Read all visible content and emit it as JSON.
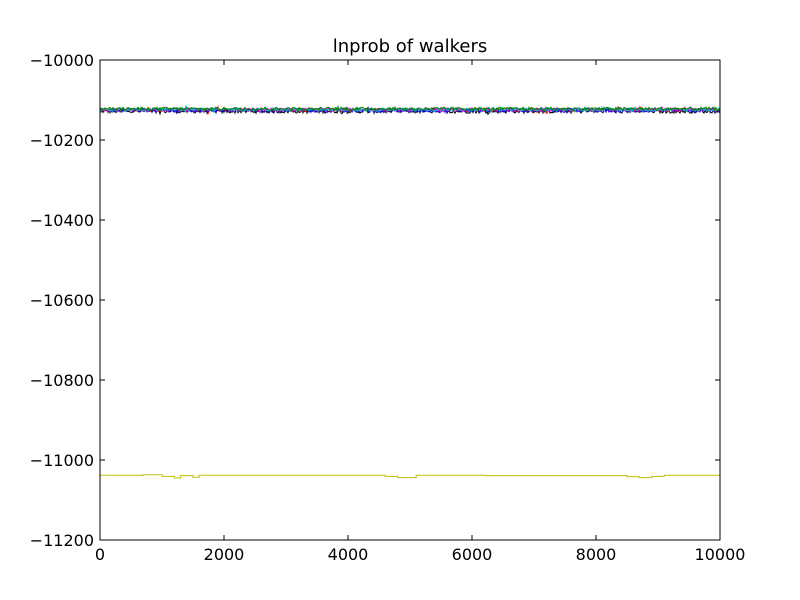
{
  "chart_data": {
    "type": "line",
    "title": "lnprob of walkers",
    "xlabel": "",
    "ylabel": "",
    "xlim": [
      0,
      10000
    ],
    "ylim": [
      -11200,
      -10000
    ],
    "x_ticks": [
      0,
      2000,
      4000,
      6000,
      8000,
      10000
    ],
    "x_tick_labels": [
      "0",
      "2000",
      "4000",
      "6000",
      "8000",
      "10000"
    ],
    "y_ticks": [
      -11200,
      -11000,
      -10800,
      -10600,
      -10400,
      -10200,
      -10000
    ],
    "y_tick_labels": [
      "−11200",
      "−11000",
      "−10800",
      "−10600",
      "−10400",
      "−10200",
      "−10000"
    ],
    "grid": false,
    "legend": "none",
    "series": [
      {
        "color": "#000000",
        "noise": 5,
        "x": [
          0,
          10000
        ],
        "y": [
          -10128,
          -10128
        ]
      },
      {
        "color": "#ff0000",
        "noise": 4,
        "x": [
          0,
          10000
        ],
        "y": [
          -10125,
          -10125
        ]
      },
      {
        "color": "#0000ff",
        "noise": 5,
        "x": [
          0,
          10000
        ],
        "y": [
          -10126,
          -10126
        ]
      },
      {
        "color": "#ff00ff",
        "noise": 4,
        "x": [
          0,
          10000
        ],
        "y": [
          -10124,
          -10124
        ]
      },
      {
        "color": "#00bfbf",
        "noise": 4,
        "x": [
          0,
          10000
        ],
        "y": [
          -10124,
          -10124
        ]
      },
      {
        "color": "#008000",
        "noise": 4,
        "x": [
          0,
          10000
        ],
        "y": [
          -10122,
          -10122
        ]
      },
      {
        "color": "#bfbf00",
        "noise": 0,
        "x": [
          0,
          700,
          700,
          1000,
          1000,
          1200,
          1200,
          1300,
          1300,
          1500,
          1500,
          1600,
          1600,
          4600,
          4600,
          4800,
          4800,
          5100,
          5100,
          6200,
          6200,
          8500,
          8500,
          8700,
          8700,
          8900,
          8900,
          9100,
          9100,
          10000
        ],
        "y": [
          -11038,
          -11038,
          -11037,
          -11037,
          -11041,
          -11041,
          -11045,
          -11045,
          -11039,
          -11039,
          -11043,
          -11043,
          -11038,
          -11038,
          -11041,
          -11041,
          -11044,
          -11044,
          -11038,
          -11038,
          -11039,
          -11039,
          -11042,
          -11042,
          -11044,
          -11044,
          -11041,
          -11041,
          -11038,
          -11038
        ]
      }
    ]
  }
}
